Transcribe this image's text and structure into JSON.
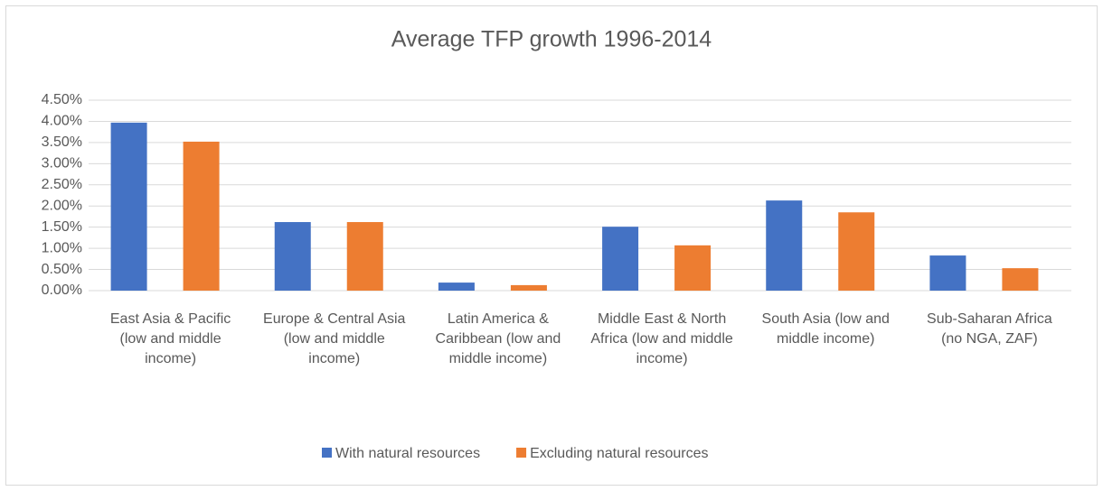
{
  "chart_data": {
    "type": "bar",
    "title": "Average TFP growth 1996-2014",
    "categories": [
      "East Asia & Pacific (low and middle income)",
      "Europe & Central Asia (low and middle income)",
      "Latin America & Caribbean (low and middle income)",
      "Middle East & North Africa (low and middle income)",
      "South Asia (low and middle income)",
      "Sub-Saharan Africa (no NGA, ZAF)"
    ],
    "series": [
      {
        "name": "With natural resources",
        "color": "#4472c4",
        "values": [
          3.97,
          1.62,
          0.19,
          1.51,
          2.13,
          0.83
        ]
      },
      {
        "name": "Excluding natural resources",
        "color": "#ed7d31",
        "values": [
          3.52,
          1.62,
          0.13,
          1.07,
          1.85,
          0.53
        ]
      }
    ],
    "ylim": [
      0,
      4.5
    ],
    "yticks": [
      {
        "value": 0,
        "label": "0.00%"
      },
      {
        "value": 0.5,
        "label": "0.50%"
      },
      {
        "value": 1,
        "label": "1.00%"
      },
      {
        "value": 1.5,
        "label": "1.50%"
      },
      {
        "value": 2,
        "label": "2.00%"
      },
      {
        "value": 2.5,
        "label": "2.50%"
      },
      {
        "value": 3,
        "label": "3.00%"
      },
      {
        "value": 3.5,
        "label": "3.50%"
      },
      {
        "value": 4,
        "label": "4.00%"
      },
      {
        "value": 4.5,
        "label": "4.50%"
      }
    ],
    "grid": true,
    "legend": "bottom"
  }
}
